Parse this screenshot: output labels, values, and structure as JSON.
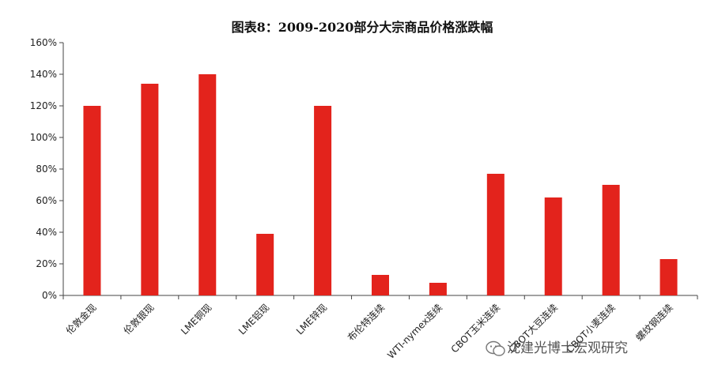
{
  "chart_data": {
    "type": "bar",
    "title": "图表8：2009-2020部分大宗商品价格涨跌幅",
    "categories": [
      "伦敦金现",
      "伦敦银现",
      "LME铜现",
      "LME铝现",
      "LME锌现",
      "布伦特连续",
      "WTI-nymex连续",
      "CBOT玉米连续",
      "CBOT大豆连续",
      "CBOT小麦连续",
      "螺纹钢连续"
    ],
    "values": [
      120,
      134,
      140,
      39,
      120,
      13,
      8,
      77,
      62,
      70,
      23
    ],
    "ylim": [
      0,
      160
    ],
    "yticks": [
      "0%",
      "20%",
      "40%",
      "60%",
      "80%",
      "100%",
      "120%",
      "140%",
      "160%"
    ],
    "xlabel": "",
    "ylabel": "",
    "grid": false,
    "bar_color": "#e3231c"
  },
  "watermark": {
    "text": "沈建光博士宏观研究",
    "icon": "wechat-icon"
  }
}
